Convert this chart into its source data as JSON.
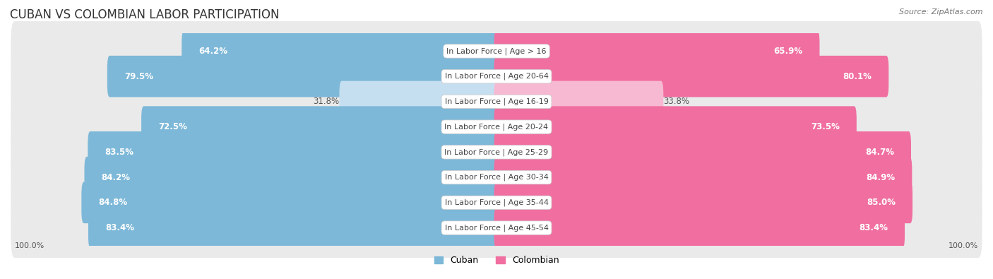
{
  "title": "CUBAN VS COLOMBIAN LABOR PARTICIPATION",
  "source": "Source: ZipAtlas.com",
  "categories": [
    "In Labor Force | Age > 16",
    "In Labor Force | Age 20-64",
    "In Labor Force | Age 16-19",
    "In Labor Force | Age 20-24",
    "In Labor Force | Age 25-29",
    "In Labor Force | Age 30-34",
    "In Labor Force | Age 35-44",
    "In Labor Force | Age 45-54"
  ],
  "cuban_values": [
    64.2,
    79.5,
    31.8,
    72.5,
    83.5,
    84.2,
    84.8,
    83.4
  ],
  "colombian_values": [
    65.9,
    80.1,
    33.8,
    73.5,
    84.7,
    84.9,
    85.0,
    83.4
  ],
  "cuban_color": "#7db8d8",
  "cuban_color_light": "#c5dff0",
  "colombian_color": "#f06fa0",
  "colombian_color_light": "#f7b8d2",
  "row_bg_color": "#eaeaea",
  "max_value": 100.0,
  "label_fontsize": 8.0,
  "title_fontsize": 12,
  "source_fontsize": 8,
  "legend_fontsize": 9,
  "value_fontsize": 8.5
}
